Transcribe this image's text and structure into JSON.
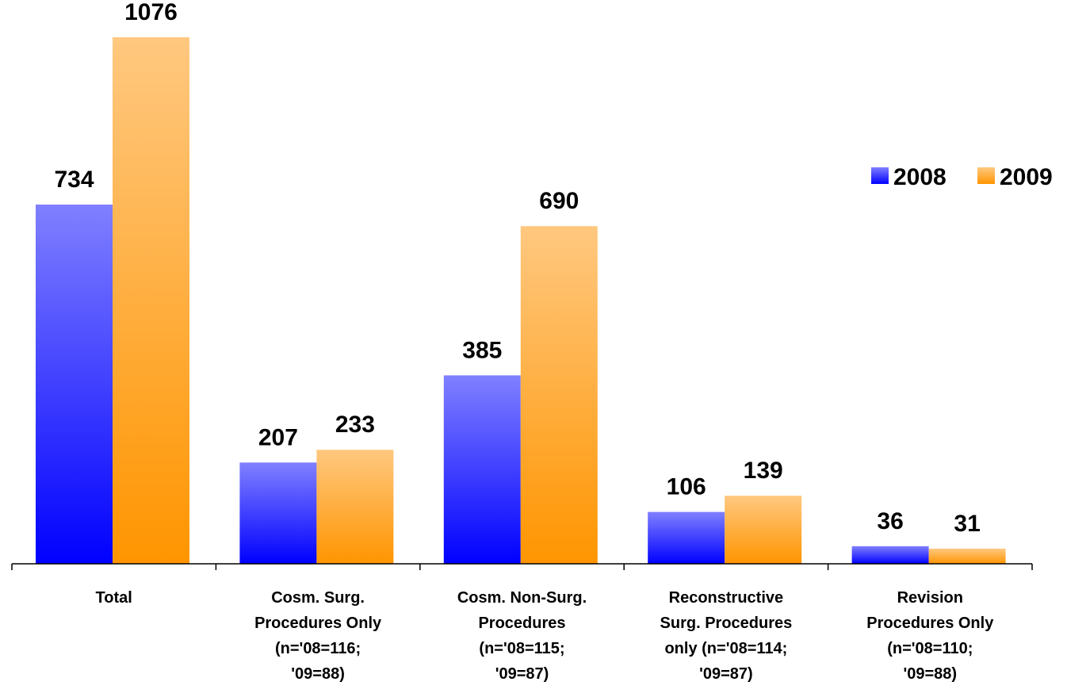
{
  "chart_data": {
    "type": "bar",
    "categories": [
      [
        "Total"
      ],
      [
        "Cosm. Surg.",
        "Procedures Only",
        "(n='08=116;",
        "'09=88)"
      ],
      [
        "Cosm. Non-Surg.",
        "Procedures",
        "(n='08=115;",
        "'09=87)"
      ],
      [
        "Reconstructive",
        "Surg. Procedures",
        "only (n='08=114;",
        "'09=87)"
      ],
      [
        "Revision",
        "Procedures Only",
        "(n='08=110;",
        "'09=88)"
      ]
    ],
    "series": [
      {
        "name": "2008",
        "values": [
          734,
          207,
          385,
          106,
          36
        ],
        "labels": [
          "734",
          "207",
          "385",
          "106",
          "36"
        ]
      },
      {
        "name": "2009",
        "values": [
          1076,
          233,
          690,
          139,
          31
        ],
        "labels": [
          "1076",
          "233",
          "690",
          "139",
          "31"
        ]
      }
    ],
    "ylim": [
      0,
      1130
    ],
    "legend": "right",
    "grid": false,
    "colors": {
      "2008_top": "#8080FF",
      "2008_bottom": "#0000FF",
      "2009_top": "#FFC880",
      "2009_bottom": "#FF9500",
      "axis": "#000000"
    }
  }
}
